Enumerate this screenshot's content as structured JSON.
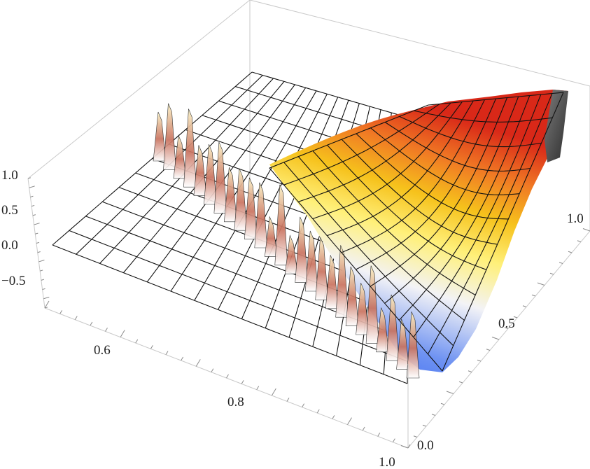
{
  "chart_data": {
    "type": "surface3d",
    "title": "",
    "axes": {
      "x": {
        "range": [
          0.5,
          1.0
        ],
        "ticks": [
          0.6,
          0.8,
          1.0
        ],
        "tick_labels": [
          "0.6",
          "0.8",
          "1.0"
        ]
      },
      "y": {
        "range": [
          0.0,
          1.0
        ],
        "ticks": [
          0.0,
          0.5,
          1.0
        ],
        "tick_labels": [
          "0.0",
          "0.5",
          "1.0"
        ]
      },
      "z": {
        "range": [
          -0.8,
          1.05
        ],
        "ticks": [
          -0.5,
          0.0,
          0.5,
          1.0
        ],
        "tick_labels": [
          "−0.5",
          "0.0",
          "0.5",
          "1.0"
        ]
      }
    },
    "boundary": "curved edge near x≈0.83 at y=1 to x≈1.0 at y=0; surface flat at z=0 on the low-x side, with spiky artifacts along the edge",
    "surface_columns": [
      {
        "x": 1.0,
        "z_at_y": [
          {
            "y": 0.0,
            "z": -0.78
          },
          {
            "y": 0.5,
            "z": 0.0
          },
          {
            "y": 1.0,
            "z": 0.9
          }
        ]
      },
      {
        "x": 0.95,
        "z_at_y": [
          {
            "y": 0.1,
            "z": -0.6
          },
          {
            "y": 0.5,
            "z": 0.05
          },
          {
            "y": 1.0,
            "z": 0.75
          }
        ]
      },
      {
        "x": 0.9,
        "z_at_y": [
          {
            "y": 0.4,
            "z": -0.3
          },
          {
            "y": 0.7,
            "z": 0.2
          },
          {
            "y": 1.0,
            "z": 0.5
          }
        ]
      },
      {
        "x": 0.85,
        "z_at_y": [
          {
            "y": 0.8,
            "z": -0.05
          },
          {
            "y": 1.0,
            "z": 0.15
          }
        ]
      }
    ],
    "colorscale": [
      "#2c5ff2",
      "#8fb0f5",
      "#f4f4f4",
      "#fff18a",
      "#f2c418",
      "#f07a24",
      "#d8281a"
    ],
    "grid": true,
    "box": true
  }
}
